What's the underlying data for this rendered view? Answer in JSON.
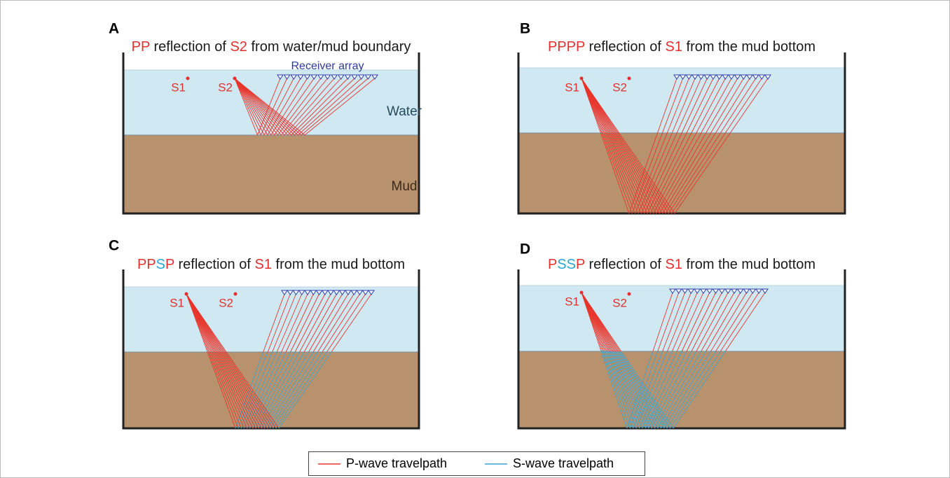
{
  "panels": [
    {
      "letter": "A",
      "title": [
        {
          "text": "PP",
          "color": "#e3302f"
        },
        {
          "text": " reflection of ",
          "color": "#1a1a1a"
        },
        {
          "text": "S2",
          "color": "#e3302f"
        },
        {
          "text": " from water/mud boundary",
          "color": "#1a1a1a"
        }
      ],
      "sources": [
        "S1",
        "S2"
      ],
      "receiver_label": "Receiver array",
      "layers": [
        "Water",
        "Mud"
      ]
    },
    {
      "letter": "B",
      "title": [
        {
          "text": "PPPP",
          "color": "#e3302f"
        },
        {
          "text": " reflection of ",
          "color": "#1a1a1a"
        },
        {
          "text": "S1",
          "color": "#e3302f"
        },
        {
          "text": " from the mud bottom",
          "color": "#1a1a1a"
        }
      ],
      "sources": [
        "S1",
        "S2"
      ]
    },
    {
      "letter": "C",
      "title": [
        {
          "text": "PP",
          "color": "#e3302f"
        },
        {
          "text": "S",
          "color": "#27a6d6"
        },
        {
          "text": "P",
          "color": "#e3302f"
        },
        {
          "text": " reflection of ",
          "color": "#1a1a1a"
        },
        {
          "text": "S1",
          "color": "#e3302f"
        },
        {
          "text": " from the mud bottom",
          "color": "#1a1a1a"
        }
      ],
      "sources": [
        "S1",
        "S2"
      ]
    },
    {
      "letter": "D",
      "title": [
        {
          "text": "P",
          "color": "#e3302f"
        },
        {
          "text": "SS",
          "color": "#27a6d6"
        },
        {
          "text": "P",
          "color": "#e3302f"
        },
        {
          "text": " reflection of ",
          "color": "#1a1a1a"
        },
        {
          "text": "S1",
          "color": "#e3302f"
        },
        {
          "text": " from the mud bottom",
          "color": "#1a1a1a"
        }
      ],
      "sources": [
        "S1",
        "S2"
      ]
    }
  ],
  "legend": [
    {
      "label": "P-wave travelpath",
      "color": "#e8352b"
    },
    {
      "label": "S-wave travelpath",
      "color": "#3aa5d0"
    }
  ]
}
